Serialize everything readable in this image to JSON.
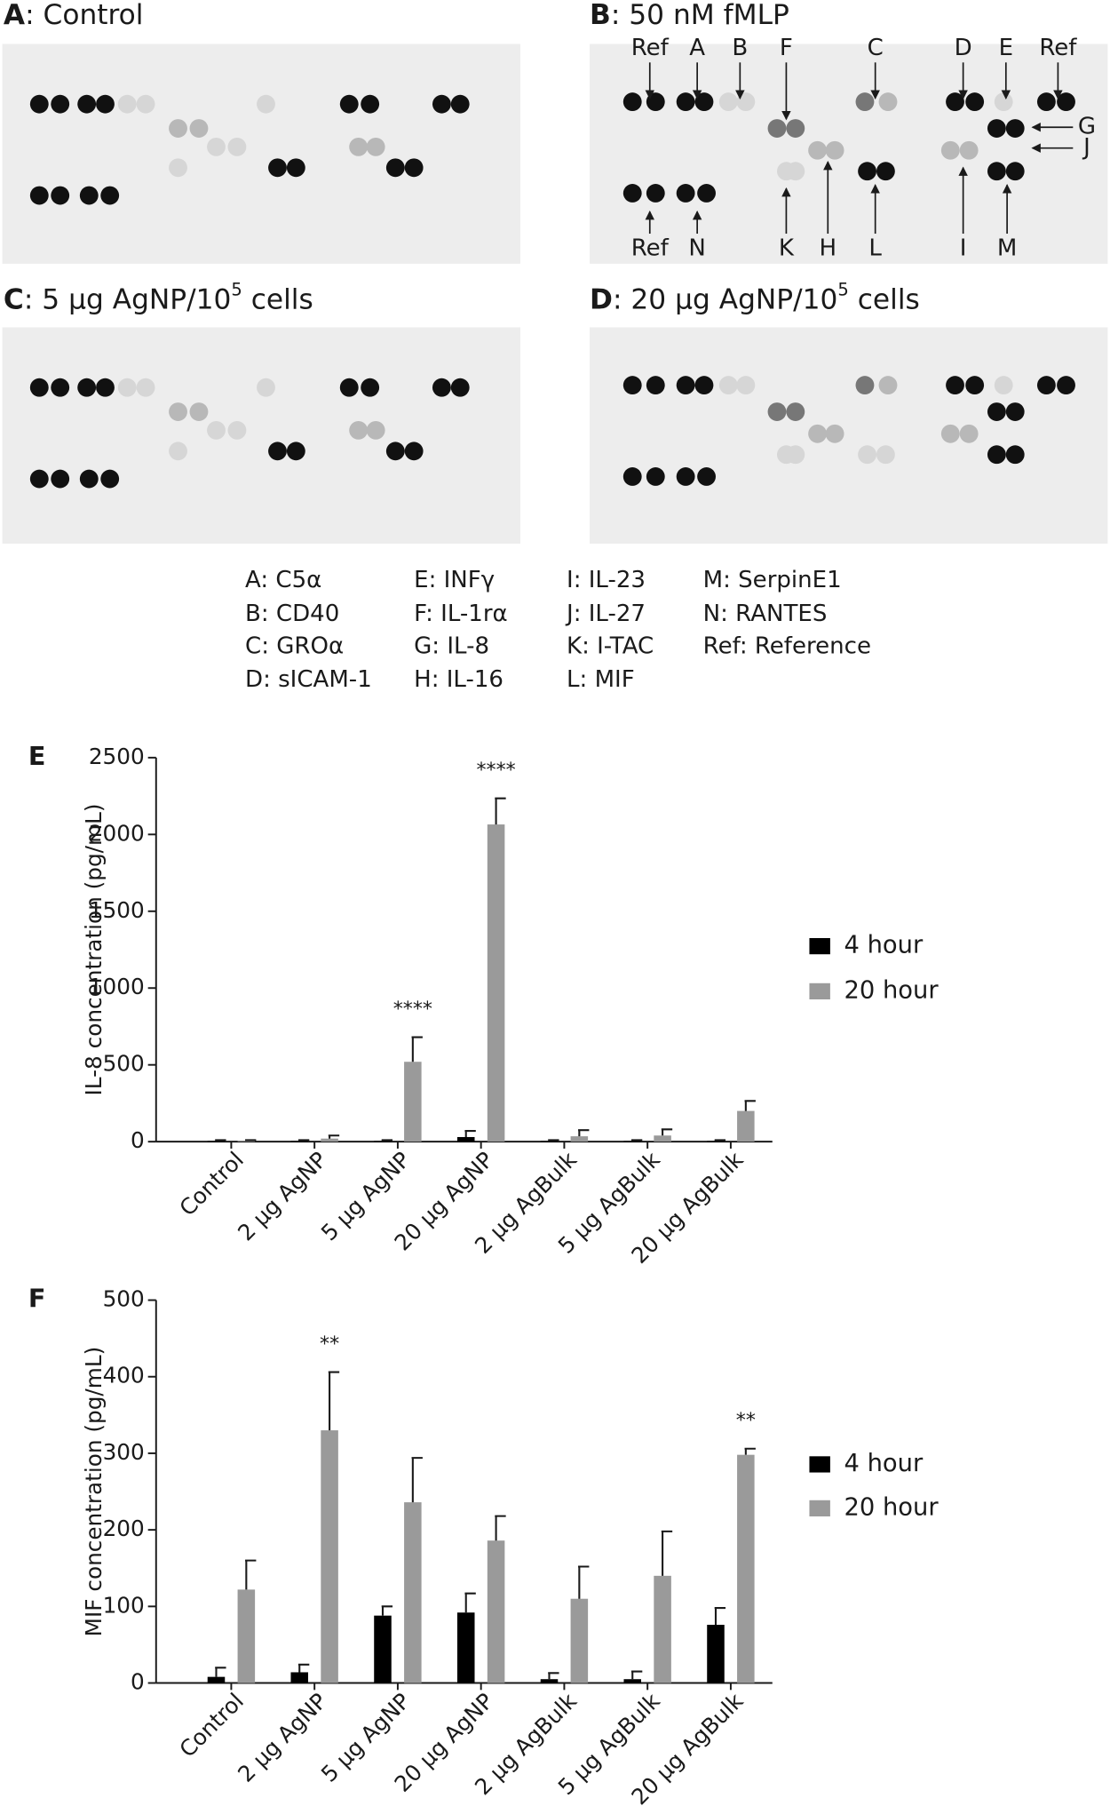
{
  "panels": [
    {
      "label": "A",
      "text": ": Control"
    },
    {
      "label": "B",
      "text": ": 50 nM fMLP"
    },
    {
      "label": "C",
      "text": ": 5 µg AgNP/10",
      "sup": "5",
      "tail": " cells"
    },
    {
      "label": "D",
      "text": ": 20 µg AgNP/10",
      "sup": "5",
      "tail": " cells"
    }
  ],
  "blot_labels": [
    "Ref",
    "A",
    "B",
    "F",
    "C",
    "D",
    "E",
    "Ref",
    "G",
    "J",
    "Ref",
    "N",
    "K",
    "H",
    "L",
    "I",
    "M"
  ],
  "key": [
    [
      "A: C5α",
      "B: CD40",
      "C: GROα",
      "D: sICAM-1"
    ],
    [
      "E: INFγ",
      "F: IL-1rα",
      "G: IL-8",
      "H: IL-16"
    ],
    [
      "I: IL-23",
      "J: IL-27",
      "K: I-TAC",
      "L: MIF"
    ],
    [
      "M: SerpinE1",
      "N: RANTES",
      "Ref: Reference"
    ]
  ],
  "chart_data": [
    {
      "type": "bar",
      "panel": "E",
      "y_label": "IL-8 concentration (pg/mL)",
      "categories": [
        "Control",
        "2 µg AgNP",
        "5 µg AgNP",
        "20 µg AgNP",
        "2 µg AgBulk",
        "5 µg AgBulk",
        "20 µg AgBulk"
      ],
      "series": [
        {
          "name": "4 hour",
          "color": "#000000",
          "values": [
            5,
            5,
            5,
            30,
            5,
            5,
            5
          ],
          "errors": [
            5,
            5,
            5,
            40,
            5,
            5,
            5
          ]
        },
        {
          "name": "20 hour",
          "color": "#9a9a9a",
          "values": [
            5,
            20,
            520,
            2065,
            35,
            40,
            200
          ],
          "errors": [
            5,
            20,
            160,
            170,
            40,
            40,
            65
          ]
        }
      ],
      "annotations": [
        "****",
        "****"
      ],
      "ylim": [
        0,
        2500
      ],
      "yticks": [
        0,
        500,
        1000,
        1500,
        2000,
        2500
      ]
    },
    {
      "type": "bar",
      "panel": "F",
      "y_label": "MIF concentration (pg/mL)",
      "categories": [
        "Control",
        "2 µg AgNP",
        "5 µg AgNP",
        "20 µg AgNP",
        "2 µg AgBulk",
        "5 µg AgBulk",
        "20 µg AgBulk"
      ],
      "series": [
        {
          "name": "4 hour",
          "color": "#000000",
          "values": [
            8,
            14,
            88,
            92,
            5,
            5,
            76
          ],
          "errors": [
            12,
            10,
            12,
            25,
            8,
            10,
            22
          ]
        },
        {
          "name": "20 hour",
          "color": "#9a9a9a",
          "values": [
            122,
            330,
            236,
            186,
            110,
            140,
            298
          ],
          "errors": [
            38,
            76,
            58,
            32,
            42,
            58,
            8
          ]
        }
      ],
      "annotations": [
        "**",
        "**"
      ],
      "ylim": [
        0,
        500
      ],
      "yticks": [
        0,
        100,
        200,
        300,
        400,
        500
      ]
    }
  ]
}
